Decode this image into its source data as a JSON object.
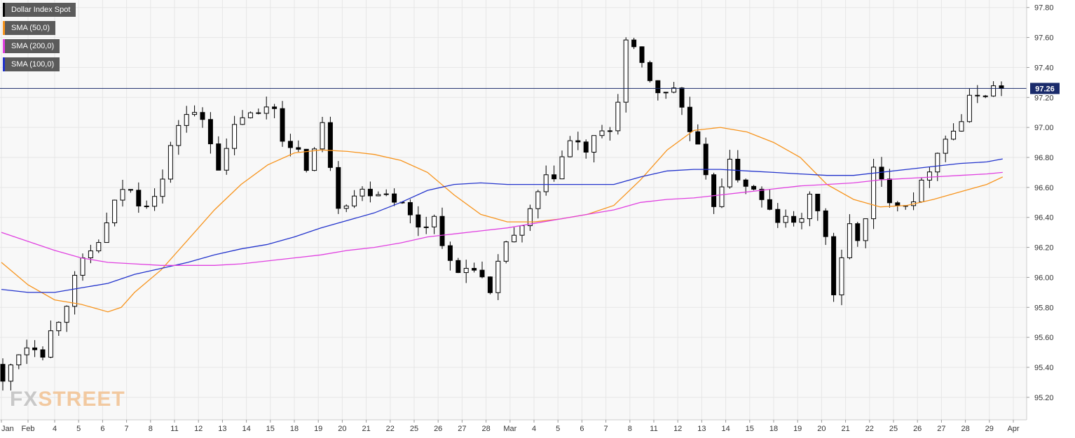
{
  "legend": [
    {
      "label": "Dollar Index Spot",
      "color": "#000000"
    },
    {
      "label": "SMA (50,0)",
      "color": "#f7941d"
    },
    {
      "label": "SMA (200,0)",
      "color": "#e040e0"
    },
    {
      "label": "SMA (100,0)",
      "color": "#2233cc"
    }
  ],
  "watermark": {
    "part1": "FX",
    "part2": "STREET"
  },
  "colors": {
    "background": "#f8f8f8",
    "grid": "#e6e6e6",
    "price_line": "#1a2b6b",
    "price_tag": "#1a2b6b"
  },
  "chart_data": {
    "type": "candlestick",
    "title": "",
    "instrument": "Dollar Index Spot",
    "y_axis_position": "right",
    "ylim": [
      95.05,
      97.85
    ],
    "y_ticks": [
      95.2,
      95.4,
      95.6,
      95.8,
      96.0,
      96.2,
      96.4,
      96.6,
      96.8,
      97.0,
      97.2,
      97.4,
      97.6,
      97.8
    ],
    "y_tick_labels": [
      "95.20",
      "95.40",
      "95.60",
      "95.80",
      "96.00",
      "96.20",
      "96.40",
      "96.60",
      "96.80",
      "97.00",
      "97.20",
      "97.40",
      "97.60",
      "97.80"
    ],
    "x_tick_labels": [
      "Jan",
      "Feb",
      "4",
      "5",
      "6",
      "7",
      "8",
      "11",
      "12",
      "13",
      "14",
      "15",
      "18",
      "19",
      "20",
      "21",
      "22",
      "25",
      "26",
      "27",
      "28",
      "Mar",
      "4",
      "5",
      "6",
      "7",
      "8",
      "11",
      "12",
      "13",
      "14",
      "15",
      "18",
      "19",
      "20",
      "21",
      "22",
      "25",
      "26",
      "27",
      "28",
      "29",
      "Apr"
    ],
    "x_tick_index": [
      0,
      10,
      20,
      29,
      38,
      47,
      56,
      65,
      74,
      83,
      92,
      101,
      110,
      119,
      128,
      137,
      146,
      155,
      164,
      173,
      182,
      191,
      200,
      209,
      218,
      227,
      236,
      245,
      254,
      263,
      272,
      281,
      290,
      299,
      308,
      317,
      326,
      335,
      344,
      353,
      362,
      371,
      380
    ],
    "bar_count": 383,
    "current_price": 97.26,
    "current_price_label": "97.26",
    "grid": true,
    "legend_position": "top-left",
    "price_path": [
      [
        0,
        95.42
      ],
      [
        3,
        95.28
      ],
      [
        8,
        95.5
      ],
      [
        14,
        95.58
      ],
      [
        18,
        95.52
      ],
      [
        25,
        95.78
      ],
      [
        33,
        96.08
      ],
      [
        41,
        96.3
      ],
      [
        48,
        96.6
      ],
      [
        56,
        96.5
      ],
      [
        63,
        96.65
      ],
      [
        70,
        97.1
      ],
      [
        79,
        97.05
      ],
      [
        85,
        96.7
      ],
      [
        92,
        97.1
      ],
      [
        98,
        97.05
      ],
      [
        104,
        97.2
      ],
      [
        110,
        96.85
      ],
      [
        118,
        96.75
      ],
      [
        124,
        97.05
      ],
      [
        128,
        96.5
      ],
      [
        135,
        96.55
      ],
      [
        142,
        96.6
      ],
      [
        150,
        96.55
      ],
      [
        158,
        96.35
      ],
      [
        166,
        96.4
      ],
      [
        172,
        96.0
      ],
      [
        180,
        96.1
      ],
      [
        186,
        95.85
      ],
      [
        192,
        96.25
      ],
      [
        198,
        96.3
      ],
      [
        204,
        96.55
      ],
      [
        210,
        96.7
      ],
      [
        216,
        96.9
      ],
      [
        222,
        96.85
      ],
      [
        232,
        97.0
      ],
      [
        234,
        97.2
      ],
      [
        236,
        97.6
      ],
      [
        241,
        97.45
      ],
      [
        247,
        97.3
      ],
      [
        252,
        97.2
      ],
      [
        256,
        97.3
      ],
      [
        259,
        97.05
      ],
      [
        265,
        96.8
      ],
      [
        269,
        96.45
      ],
      [
        275,
        96.75
      ],
      [
        281,
        96.65
      ],
      [
        286,
        96.55
      ],
      [
        292,
        96.4
      ],
      [
        300,
        96.35
      ],
      [
        306,
        96.5
      ],
      [
        311,
        96.45
      ],
      [
        314,
        95.88
      ],
      [
        317,
        95.95
      ],
      [
        320,
        96.35
      ],
      [
        326,
        96.25
      ],
      [
        330,
        96.7
      ],
      [
        336,
        96.55
      ],
      [
        342,
        96.5
      ],
      [
        348,
        96.6
      ],
      [
        353,
        96.85
      ],
      [
        358,
        96.95
      ],
      [
        363,
        97.05
      ],
      [
        367,
        97.2
      ],
      [
        371,
        97.25
      ],
      [
        376,
        97.26
      ]
    ],
    "series": [
      {
        "name": "SMA (50,0)",
        "color": "#f7941d",
        "x": [
          0,
          10,
          20,
          30,
          40,
          45,
          50,
          60,
          70,
          80,
          90,
          100,
          110,
          120,
          130,
          140,
          150,
          160,
          170,
          180,
          190,
          200,
          210,
          220,
          230,
          240,
          250,
          260,
          270,
          280,
          290,
          300,
          310,
          320,
          330,
          340,
          350,
          360,
          370,
          376
        ],
        "y": [
          96.1,
          95.95,
          95.85,
          95.82,
          95.77,
          95.8,
          95.9,
          96.05,
          96.25,
          96.45,
          96.62,
          96.75,
          96.83,
          96.85,
          96.84,
          96.82,
          96.78,
          96.7,
          96.55,
          96.42,
          96.37,
          96.37,
          96.39,
          96.42,
          96.48,
          96.65,
          96.85,
          96.98,
          97.0,
          96.97,
          96.9,
          96.8,
          96.62,
          96.52,
          96.47,
          96.48,
          96.52,
          96.57,
          96.62,
          96.67
        ]
      },
      {
        "name": "SMA (100,0)",
        "color": "#2233cc",
        "x": [
          0,
          10,
          20,
          30,
          40,
          50,
          60,
          70,
          80,
          90,
          100,
          110,
          120,
          130,
          140,
          150,
          160,
          170,
          180,
          190,
          200,
          210,
          220,
          230,
          240,
          250,
          260,
          270,
          280,
          290,
          300,
          310,
          320,
          330,
          340,
          350,
          360,
          370,
          376
        ],
        "y": [
          95.92,
          95.9,
          95.9,
          95.93,
          95.96,
          96.02,
          96.06,
          96.1,
          96.15,
          96.19,
          96.22,
          96.27,
          96.33,
          96.38,
          96.43,
          96.5,
          96.58,
          96.62,
          96.63,
          96.62,
          96.62,
          96.62,
          96.62,
          96.62,
          96.67,
          96.71,
          96.72,
          96.72,
          96.71,
          96.7,
          96.69,
          96.68,
          96.68,
          96.7,
          96.72,
          96.74,
          96.76,
          96.77,
          96.79
        ]
      },
      {
        "name": "SMA (200,0)",
        "color": "#e040e0",
        "x": [
          0,
          10,
          20,
          30,
          40,
          50,
          60,
          70,
          80,
          90,
          100,
          110,
          120,
          130,
          140,
          150,
          160,
          170,
          180,
          190,
          200,
          210,
          220,
          230,
          240,
          250,
          260,
          270,
          280,
          290,
          300,
          310,
          320,
          330,
          340,
          350,
          360,
          370,
          376
        ],
        "y": [
          96.3,
          96.24,
          96.18,
          96.13,
          96.1,
          96.09,
          96.08,
          96.08,
          96.08,
          96.09,
          96.11,
          96.13,
          96.15,
          96.18,
          96.2,
          96.23,
          96.27,
          96.29,
          96.31,
          96.33,
          96.36,
          96.39,
          96.42,
          96.45,
          96.5,
          96.52,
          96.53,
          96.55,
          96.57,
          96.59,
          96.61,
          96.62,
          96.63,
          96.65,
          96.66,
          96.67,
          96.68,
          96.69,
          96.7
        ]
      }
    ]
  }
}
